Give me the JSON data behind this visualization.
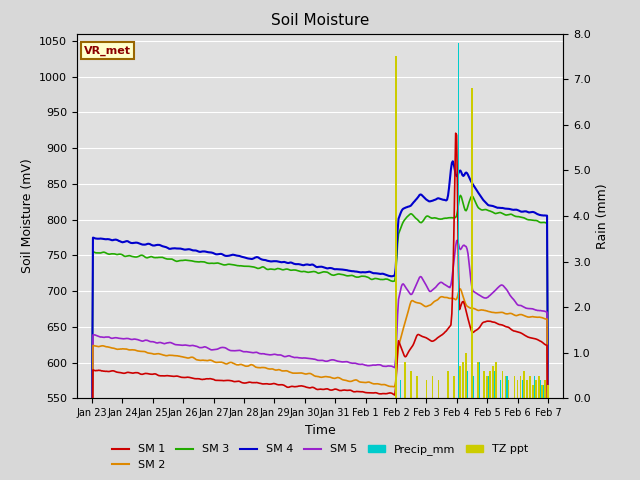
{
  "title": "Soil Moisture",
  "xlabel": "Time",
  "ylabel_left": "Soil Moisture (mV)",
  "ylabel_right": "Rain (mm)",
  "ylim_left": [
    550,
    1060
  ],
  "ylim_right": [
    0.0,
    8.0
  ],
  "yticks_left": [
    550,
    600,
    650,
    700,
    750,
    800,
    850,
    900,
    950,
    1000,
    1050
  ],
  "yticks_right": [
    0.0,
    1.0,
    2.0,
    3.0,
    4.0,
    5.0,
    6.0,
    7.0,
    8.0
  ],
  "fig_bg_color": "#d8d8d8",
  "plot_bg_color": "#e0e0e0",
  "colors": {
    "SM1": "#cc0000",
    "SM2": "#dd8800",
    "SM3": "#22aa00",
    "SM4": "#0000cc",
    "SM5": "#9922cc",
    "Precip_mm": "#00cccc",
    "TZ_ppt": "#cccc00"
  },
  "legend_label": "VR_met",
  "tick_labels": [
    "Jan 23",
    "Jan 24",
    "Jan 25",
    "Jan 26",
    "Jan 27",
    "Jan 28",
    "Jan 29",
    "Jan 30",
    "Jan 31",
    "Feb 1",
    "Feb 2",
    "Feb 3",
    "Feb 4",
    "Feb 5",
    "Feb 6",
    "Feb 7"
  ],
  "n_points": 480
}
